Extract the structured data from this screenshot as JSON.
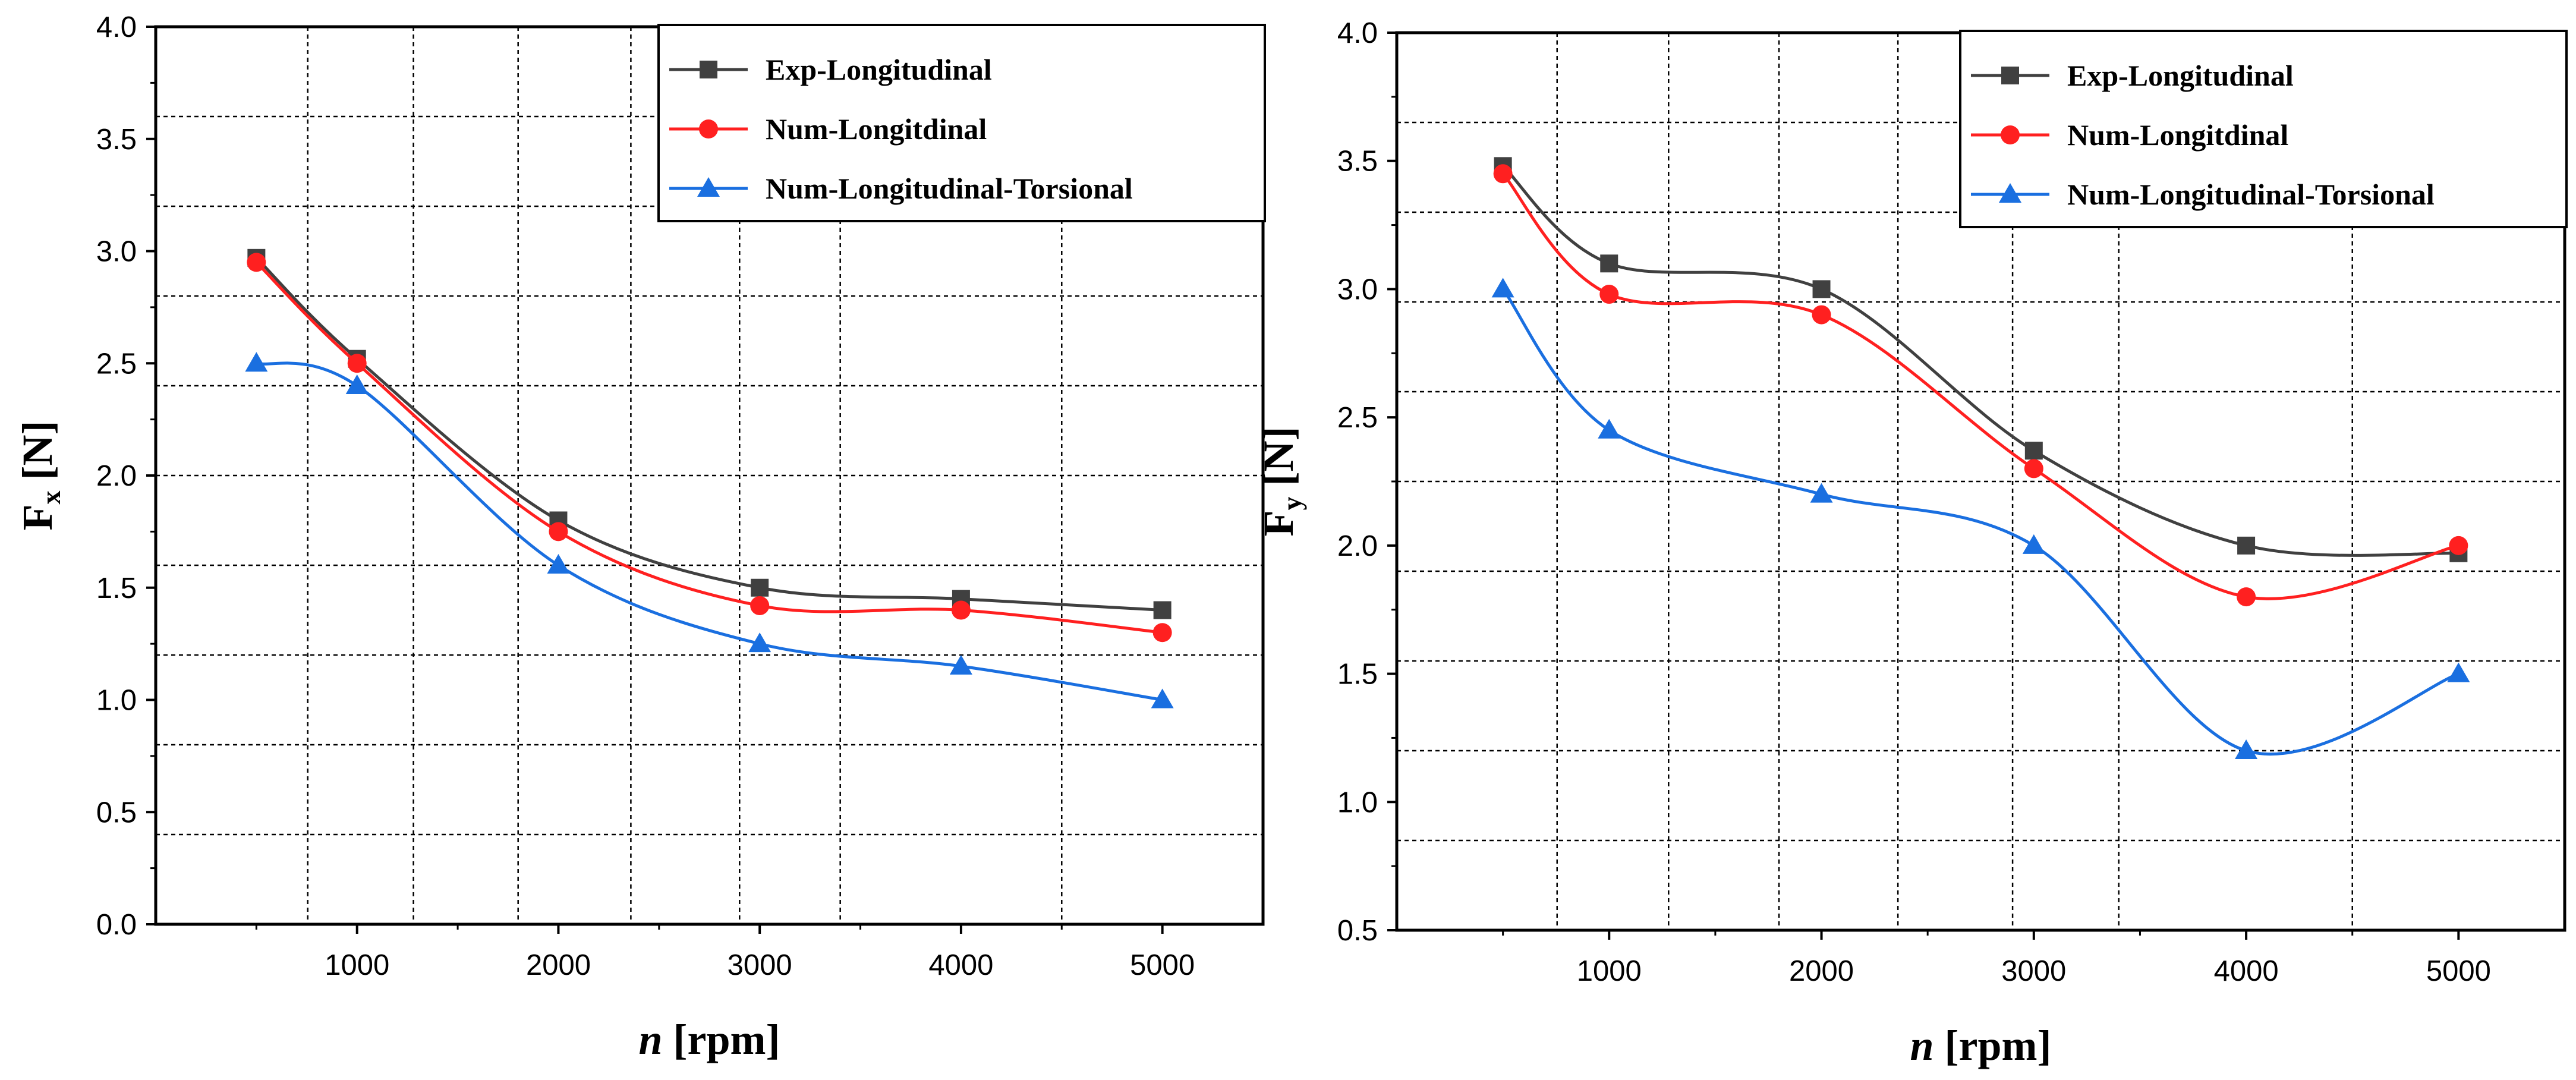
{
  "chart_data": [
    {
      "type": "line",
      "x": [
        500,
        1000,
        2000,
        3000,
        4000,
        5000
      ],
      "xlim": [
        0,
        5500
      ],
      "x_ticks": [
        "1000",
        "2000",
        "3000",
        "4000",
        "5000"
      ],
      "x_tick_values": [
        1000,
        2000,
        3000,
        4000,
        5000
      ],
      "xlabel_var": "n",
      "xlabel_unit": "[rpm]",
      "ylabel_var": "F",
      "ylabel_sub": "x",
      "ylabel_unit": "[N]",
      "ylim": [
        0.0,
        4.0
      ],
      "y_ticks": [
        "0.0",
        "0.5",
        "1.0",
        "1.5",
        "2.0",
        "2.5",
        "3.0",
        "3.5",
        "4.0"
      ],
      "y_tick_values": [
        0.0,
        0.5,
        1.0,
        1.5,
        2.0,
        2.5,
        3.0,
        3.5,
        4.0
      ],
      "grid": "dashed",
      "grid_x": [
        755,
        1280,
        1800,
        2360,
        2900,
        3400,
        4500
      ],
      "grid_y": [
        0.4,
        0.8,
        1.2,
        1.6,
        2.0,
        2.4,
        2.8,
        3.2,
        3.6
      ],
      "legend_position": "top-right",
      "series": [
        {
          "name": "Exp-Longitudinal",
          "color": "#404040",
          "marker": "square",
          "values": [
            2.97,
            2.52,
            1.8,
            1.5,
            1.45,
            1.4
          ]
        },
        {
          "name": "Num-Longitdinal",
          "color": "#ff2020",
          "marker": "circle",
          "values": [
            2.95,
            2.5,
            1.75,
            1.42,
            1.4,
            1.3
          ]
        },
        {
          "name": "Num-Longitudinal-Torsional",
          "color": "#1a6fe0",
          "marker": "triangle",
          "values": [
            2.5,
            2.4,
            1.6,
            1.25,
            1.15,
            1.0
          ]
        }
      ]
    },
    {
      "type": "line",
      "x": [
        500,
        1000,
        2000,
        3000,
        4000,
        5000
      ],
      "xlim": [
        0,
        5500
      ],
      "x_ticks": [
        "1000",
        "2000",
        "3000",
        "4000",
        "5000"
      ],
      "x_tick_values": [
        1000,
        2000,
        3000,
        4000,
        5000
      ],
      "xlabel_var": "n",
      "xlabel_unit": "[rpm]",
      "ylabel_var": "F",
      "ylabel_sub": "y",
      "ylabel_unit": "[N]",
      "ylim": [
        0.5,
        4.0
      ],
      "y_ticks": [
        "0.5",
        "1.0",
        "1.5",
        "2.0",
        "2.5",
        "3.0",
        "3.5",
        "4.0"
      ],
      "y_tick_values": [
        0.5,
        1.0,
        1.5,
        2.0,
        2.5,
        3.0,
        3.5,
        4.0
      ],
      "grid": "dashed",
      "grid_x": [
        755,
        1280,
        1800,
        2360,
        2900,
        3400,
        4500
      ],
      "grid_y": [
        0.85,
        1.2,
        1.55,
        1.9,
        2.25,
        2.6,
        2.95,
        3.3,
        3.65
      ],
      "legend_position": "top-right",
      "series": [
        {
          "name": "Exp-Longitudinal",
          "color": "#404040",
          "marker": "square",
          "values": [
            3.48,
            3.1,
            3.0,
            2.37,
            2.0,
            1.97
          ]
        },
        {
          "name": "Num-Longitdinal",
          "color": "#ff2020",
          "marker": "circle",
          "values": [
            3.45,
            2.98,
            2.9,
            2.3,
            1.8,
            2.0
          ]
        },
        {
          "name": "Num-Longitudinal-Torsional",
          "color": "#1a6fe0",
          "marker": "triangle",
          "values": [
            3.0,
            2.45,
            2.2,
            2.0,
            1.2,
            1.5
          ]
        }
      ]
    }
  ]
}
